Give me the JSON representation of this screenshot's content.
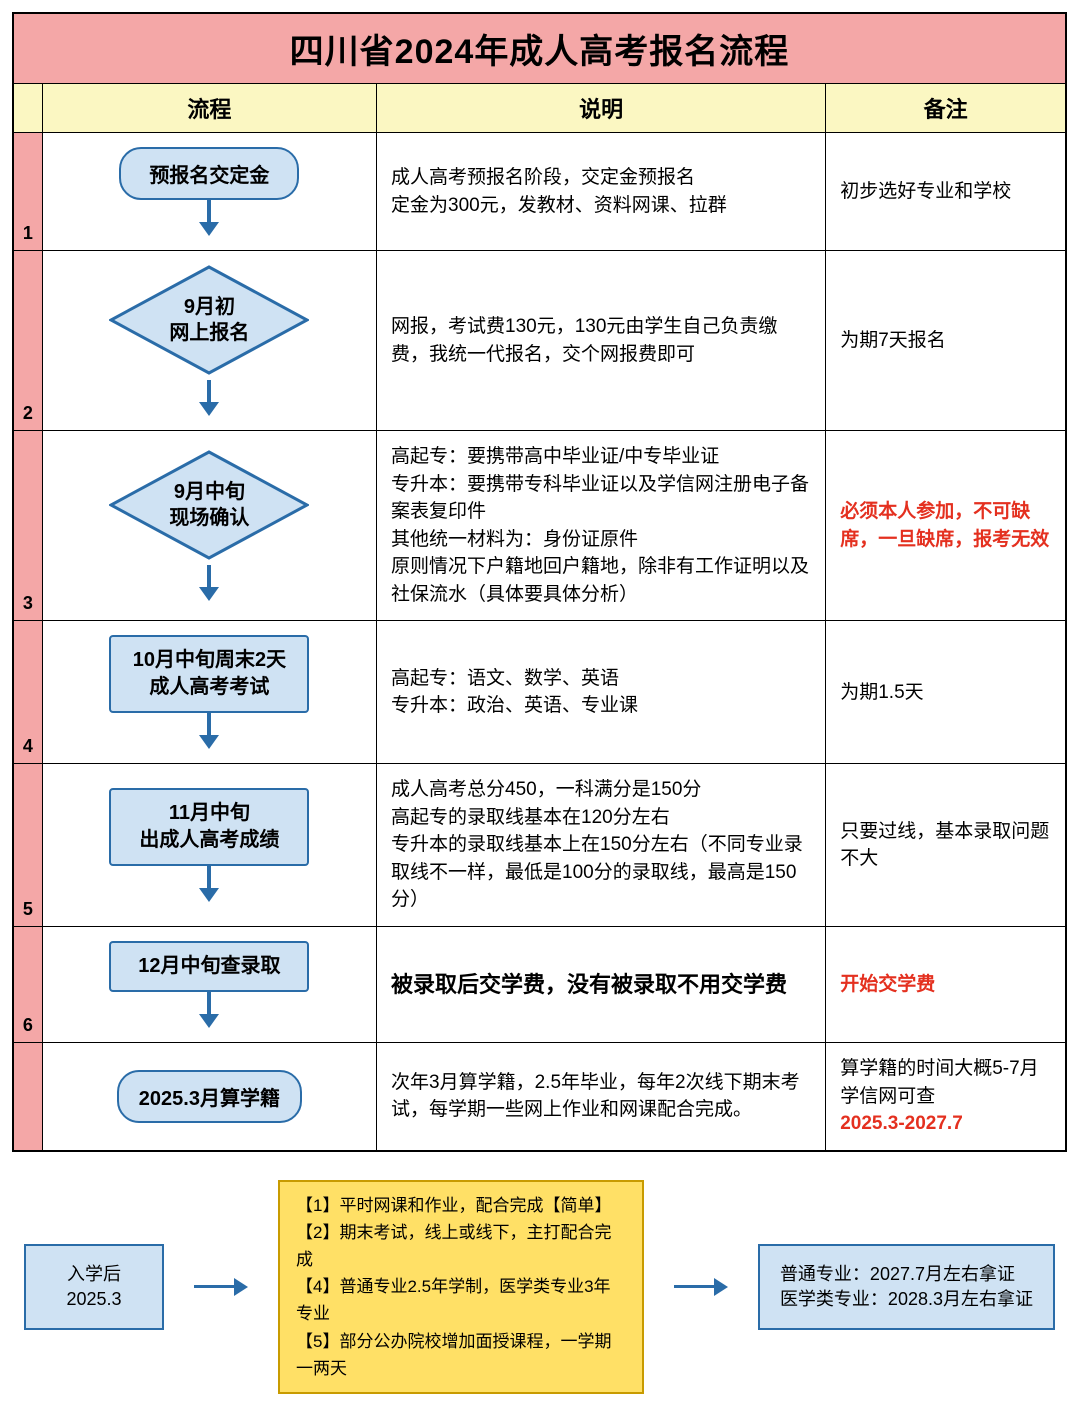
{
  "title_prefix": "四川省",
  "title_year": "2024",
  "title_suffix": "年成人高考报名流程",
  "headers": {
    "flow": "流程",
    "desc": "说明",
    "note": "备注"
  },
  "rows": [
    {
      "num": "1",
      "shape": "rounded",
      "arrow": "after",
      "label": "预报名交定金",
      "desc": "成人高考预报名阶段，交定金预报名\n定金为300元，发教材、资料网课、拉群",
      "note": "初步选好专业和学校",
      "note_red": false,
      "desc_bold": false
    },
    {
      "num": "2",
      "shape": "diamond",
      "arrow": "after",
      "label": "9月初\n网上报名",
      "desc": "网报，考试费130元，130元由学生自己负责缴费，我统一代报名，交个网报费即可",
      "note": "为期7天报名",
      "note_red": false,
      "desc_bold": false
    },
    {
      "num": "3",
      "shape": "diamond",
      "arrow": "after",
      "label": "9月中旬\n现场确认",
      "desc": "高起专：要携带高中毕业证/中专毕业证\n专升本：要携带专科毕业证以及学信网注册电子备案表复印件\n其他统一材料为：身份证原件\n原则情况下户籍地回户籍地，除非有工作证明以及社保流水（具体要具体分析）",
      "note": "必须本人参加，不可缺席，一旦缺席，报考无效",
      "note_red": true,
      "desc_bold": false
    },
    {
      "num": "4",
      "shape": "rect",
      "arrow": "after",
      "label": "10月中旬周末2天\n成人高考考试",
      "desc": "高起专：语文、数学、英语\n专升本：政治、英语、专业课",
      "note": "为期1.5天",
      "note_red": false,
      "desc_bold": false
    },
    {
      "num": "5",
      "shape": "rect",
      "arrow": "after",
      "label": "11月中旬\n出成人高考成绩",
      "desc": "成人高考总分450，一科满分是150分\n高起专的录取线基本在120分左右\n专升本的录取线基本上在150分左右（不同专业录取线不一样，最低是100分的录取线，最高是150分）",
      "note": "只要过线，基本录取问题不大",
      "note_red": false,
      "desc_bold": false
    },
    {
      "num": "6",
      "shape": "rect",
      "arrow": "after",
      "label": "12月中旬查录取",
      "desc": "被录取后交学费，没有被录取不用交学费",
      "note": "开始交学费",
      "note_red": true,
      "desc_bold": true
    },
    {
      "num": "",
      "shape": "rounded",
      "arrow": "none",
      "label": "2025.3月算学籍",
      "desc": "次年3月算学籍，2.5年毕业，每年2次线下期末考试，每学期一些网上作业和网课配合完成。",
      "note_prefix": "算学籍的时间大概5-7月学信网可查",
      "note_red_part": "2025.3-2027.7",
      "note_mixed": true,
      "desc_bold": false
    }
  ],
  "footer": {
    "left": {
      "line1": "入学后",
      "line2": "2025.3"
    },
    "mid": [
      "【1】平时网课和作业，配合完成【简单】",
      "【2】期末考试，线上或线下，主打配合完成",
      "【4】普通专业2.5年学制，医学类专业3年专业",
      "【5】部分公办院校增加面授课程，一学期一两天"
    ],
    "right": {
      "line1": "普通专业：2027.7月左右拿证",
      "line2": "医学类专业：2028.3月左右拿证"
    }
  },
  "colors": {
    "header_pink": "#f4a7a7",
    "header_yellow": "#fbf7c2",
    "shape_fill": "#cfe2f3",
    "shape_stroke": "#2a6ca8",
    "footer_yellow": "#ffe066",
    "red_text": "#e4301f"
  }
}
